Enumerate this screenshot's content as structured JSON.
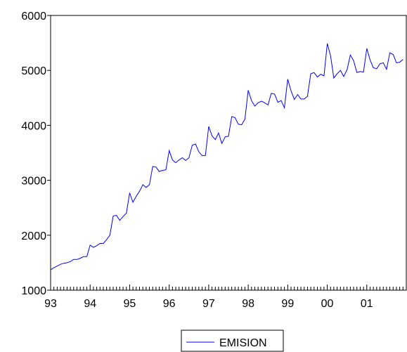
{
  "chart_data": {
    "type": "line",
    "title": "",
    "xlabel": "",
    "ylabel": "",
    "ylim": [
      1000,
      6000
    ],
    "y_ticks": [
      1000,
      2000,
      3000,
      4000,
      5000,
      6000
    ],
    "x_ticks": [
      "93",
      "94",
      "95",
      "96",
      "97",
      "98",
      "99",
      "00",
      "01"
    ],
    "grid": false,
    "legend": {
      "placement": "bottom-center",
      "entries": [
        "EMISION"
      ]
    },
    "series": [
      {
        "name": "EMISION",
        "color": "#0000ff",
        "x_start": "1993-01",
        "frequency": "monthly",
        "values": [
          1370,
          1410,
          1440,
          1470,
          1490,
          1500,
          1520,
          1560,
          1560,
          1580,
          1610,
          1610,
          1820,
          1780,
          1810,
          1850,
          1850,
          1920,
          2000,
          2350,
          2360,
          2270,
          2340,
          2400,
          2770,
          2600,
          2710,
          2800,
          2920,
          2870,
          2920,
          3250,
          3240,
          3160,
          3180,
          3190,
          3540,
          3370,
          3320,
          3370,
          3410,
          3360,
          3410,
          3640,
          3660,
          3520,
          3450,
          3450,
          3980,
          3810,
          3740,
          3860,
          3670,
          3790,
          3800,
          4160,
          4140,
          4020,
          4010,
          4110,
          4640,
          4450,
          4350,
          4410,
          4440,
          4410,
          4370,
          4580,
          4570,
          4420,
          4450,
          4320,
          4840,
          4630,
          4470,
          4560,
          4480,
          4480,
          4530,
          4940,
          4960,
          4880,
          4930,
          4900,
          5490,
          5270,
          4860,
          4940,
          5000,
          4890,
          5010,
          5280,
          5180,
          4960,
          4980,
          4970,
          5400,
          5190,
          5050,
          5030,
          5120,
          5140,
          5020,
          5320,
          5290,
          5140,
          5150,
          5200
        ]
      }
    ]
  }
}
